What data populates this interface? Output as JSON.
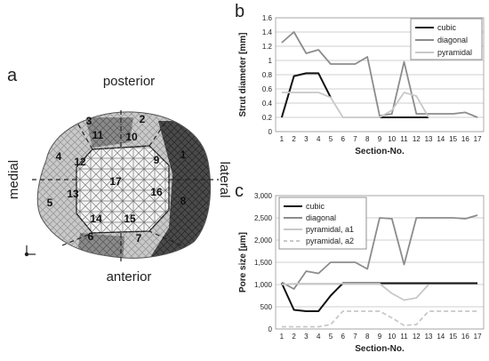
{
  "panels": {
    "a": "a",
    "b": "b",
    "c": "c"
  },
  "diagram": {
    "labels": {
      "top": "posterior",
      "bottom": "anterior",
      "left": "medial",
      "right": "lateral"
    },
    "section_numbers": [
      "1",
      "2",
      "3",
      "4",
      "5",
      "6",
      "7",
      "8",
      "9",
      "10",
      "11",
      "12",
      "13",
      "14",
      "15",
      "16",
      "17"
    ]
  },
  "colors": {
    "cubic": "#111111",
    "diagonal": "#8c8c8c",
    "pyramidal": "#c8c8c8",
    "pyramidal_a2": "#c8c8c8"
  },
  "chart_data": [
    {
      "type": "line",
      "panel": "b",
      "x": [
        1,
        2,
        3,
        4,
        5,
        6,
        7,
        8,
        9,
        10,
        11,
        12,
        13,
        14,
        15,
        16,
        17
      ],
      "xlabel": "Section-No.",
      "ylabel": "Strut diameter [mm]",
      "ylim": [
        0,
        1.6
      ],
      "yticks": [
        "0",
        "0.2",
        "0.4",
        "0.6",
        "0.8",
        "1",
        "1.2",
        "1.4",
        "1.6"
      ],
      "ytick_values": [
        0,
        0.2,
        0.4,
        0.6,
        0.8,
        1,
        1.2,
        1.4,
        1.6
      ],
      "grid": true,
      "legend_position": "top-right",
      "series": [
        {
          "name": "cubic",
          "values": [
            0.2,
            0.78,
            0.82,
            0.82,
            0.48,
            null,
            null,
            null,
            0.2,
            0.2,
            0.2,
            0.2,
            0.2,
            null,
            null,
            null,
            null
          ]
        },
        {
          "name": "diagonal",
          "values": [
            1.25,
            1.4,
            1.1,
            1.15,
            0.95,
            0.95,
            0.95,
            1.05,
            0.22,
            0.25,
            0.98,
            0.25,
            0.25,
            0.25,
            0.25,
            0.27,
            0.2
          ]
        },
        {
          "name": "pyramidal",
          "values": [
            0.55,
            0.55,
            0.55,
            0.55,
            0.48,
            0.2,
            0.2,
            0.2,
            0.2,
            0.3,
            0.55,
            0.5,
            0.2,
            null,
            null,
            null,
            null
          ]
        }
      ]
    },
    {
      "type": "line",
      "panel": "c",
      "x": [
        1,
        2,
        3,
        4,
        5,
        6,
        7,
        8,
        9,
        10,
        11,
        12,
        13,
        14,
        15,
        16,
        17
      ],
      "xlabel": "Section-No.",
      "ylabel": "Pore size [µm]",
      "ylim": [
        0,
        3000
      ],
      "yticks": [
        "0",
        "500",
        "1,000",
        "1,500",
        "2,000",
        "2,500",
        "3,000"
      ],
      "ytick_values": [
        0,
        500,
        1000,
        1500,
        2000,
        2500,
        3000
      ],
      "grid": true,
      "legend_position": "top-left",
      "series": [
        {
          "name": "cubic",
          "values": [
            1030,
            430,
            400,
            400,
            750,
            1030,
            1030,
            1030,
            1030,
            1030,
            1030,
            1030,
            1030,
            1030,
            1030,
            1030,
            1030
          ]
        },
        {
          "name": "diagonal",
          "values": [
            1050,
            900,
            1300,
            1250,
            1500,
            1500,
            1500,
            1350,
            2500,
            2480,
            1450,
            2500,
            2500,
            2500,
            2500,
            2480,
            2560
          ]
        },
        {
          "name": "pyramidal, a1",
          "values": [
            1000,
            1020,
            1020,
            1020,
            1020,
            1020,
            1020,
            1020,
            1020,
            800,
            650,
            700,
            1000,
            null,
            null,
            null,
            null
          ]
        },
        {
          "name": "pyramidal, a2",
          "values": [
            50,
            50,
            50,
            50,
            100,
            400,
            400,
            400,
            400,
            250,
            80,
            100,
            400,
            400,
            400,
            400,
            400
          ]
        }
      ]
    }
  ]
}
